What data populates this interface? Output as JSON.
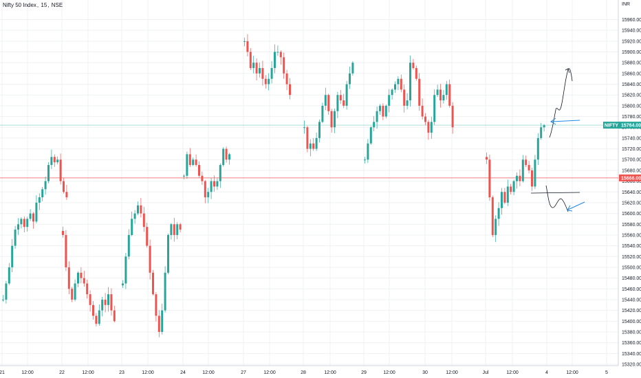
{
  "header": {
    "symbol": "Nifty 50 Index",
    "interval": "15",
    "exchange": "NSE",
    "currency": "INR"
  },
  "colors": {
    "up": "#26a69a",
    "down": "#ef5350",
    "grid": "#eef0f3",
    "current_line": "#26a69a",
    "red_line": "#ef5350",
    "drawing": "#131722",
    "arrow": "#1e88e5"
  },
  "chart_data": {
    "type": "candlestick",
    "ylim": [
      15310,
      15990
    ],
    "y_ticks": [
      15320,
      15340,
      15360,
      15380,
      15400,
      15420,
      15440,
      15460,
      15480,
      15500,
      15520,
      15540,
      15560,
      15580,
      15600,
      15620,
      15640,
      15660,
      15680,
      15700,
      15720,
      15740,
      15760,
      15780,
      15800,
      15820,
      15840,
      15860,
      15880,
      15900,
      15920,
      15940,
      15960
    ],
    "x_ticks": [
      {
        "label": "21",
        "x": 3
      },
      {
        "label": "12:00",
        "x": 40
      },
      {
        "label": "22",
        "x": 90
      },
      {
        "label": "12:00",
        "x": 128
      },
      {
        "label": "23",
        "x": 177
      },
      {
        "label": "12:00",
        "x": 215
      },
      {
        "label": "24",
        "x": 266
      },
      {
        "label": "12:00",
        "x": 303
      },
      {
        "label": "27",
        "x": 354
      },
      {
        "label": "12:00",
        "x": 392
      },
      {
        "label": "28",
        "x": 441
      },
      {
        "label": "12:00",
        "x": 480
      },
      {
        "label": "29",
        "x": 529
      },
      {
        "label": "12:00",
        "x": 566
      },
      {
        "label": "30",
        "x": 618
      },
      {
        "label": "12:00",
        "x": 657
      },
      {
        "label": "Jul",
        "x": 706
      },
      {
        "label": "12:00",
        "x": 745
      },
      {
        "label": "4",
        "x": 795
      },
      {
        "label": "12:00",
        "x": 832
      },
      {
        "label": "5",
        "x": 882
      }
    ],
    "current_price": {
      "label": "NIFTY",
      "value": 15764.0,
      "text": "15764.00"
    },
    "red_level": {
      "value": 15666.0,
      "text": "15666.00"
    },
    "days": [
      {
        "start": 3,
        "prices": [
          15440,
          15470,
          15500,
          15540,
          15570,
          15580,
          15590,
          15575,
          15590,
          15600,
          15585,
          15620,
          15630,
          15645,
          15660,
          15690,
          15705,
          15695,
          15700,
          15660,
          15640,
          15630
        ]
      },
      {
        "start": 90,
        "prices": [
          15560,
          15500,
          15460,
          15440,
          15470,
          15490,
          15480,
          15470,
          15450,
          15430,
          15410,
          15395,
          15420,
          15440,
          15430,
          15450,
          15420,
          15400
        ]
      },
      {
        "start": 177,
        "prices": [
          15470,
          15520,
          15560,
          15590,
          15600,
          15615,
          15600,
          15575,
          15540,
          15490,
          15450,
          15410,
          15380,
          15420,
          15490,
          15560,
          15580,
          15560,
          15580,
          15570
        ]
      },
      {
        "start": 266,
        "prices": [
          15670,
          15710,
          15690,
          15700,
          15690,
          15670,
          15660,
          15630,
          15640,
          15660,
          15650,
          15660,
          15690,
          15720,
          15700,
          15710
        ]
      },
      {
        "start": 354,
        "prices": [
          15920,
          15900,
          15870,
          15880,
          15860,
          15870,
          15850,
          15840,
          15850,
          15870,
          15900,
          15900,
          15890,
          15860,
          15840,
          15820
        ]
      },
      {
        "start": 441,
        "prices": [
          15760,
          15720,
          15730,
          15720,
          15740,
          15770,
          15800,
          15820,
          15790,
          15760,
          15790,
          15820,
          15810,
          15800,
          15840,
          15860,
          15880
        ]
      },
      {
        "start": 529,
        "prices": [
          15700,
          15730,
          15760,
          15770,
          15790,
          15800,
          15780,
          15800,
          15820,
          15830,
          15840,
          15850,
          15830,
          15800,
          15810,
          15880,
          15870,
          15850,
          15800,
          15780,
          15770,
          15750,
          15770,
          15820,
          15830,
          15810,
          15820,
          15840,
          15800,
          15760
        ]
      },
      {
        "start": 706,
        "prices": [
          15700,
          15630,
          15560,
          15590,
          15610,
          15640,
          15620,
          15650,
          15640,
          15660,
          15670,
          15660,
          15700,
          15690,
          15680,
          15650,
          15700,
          15740,
          15760,
          15764
        ]
      }
    ]
  }
}
